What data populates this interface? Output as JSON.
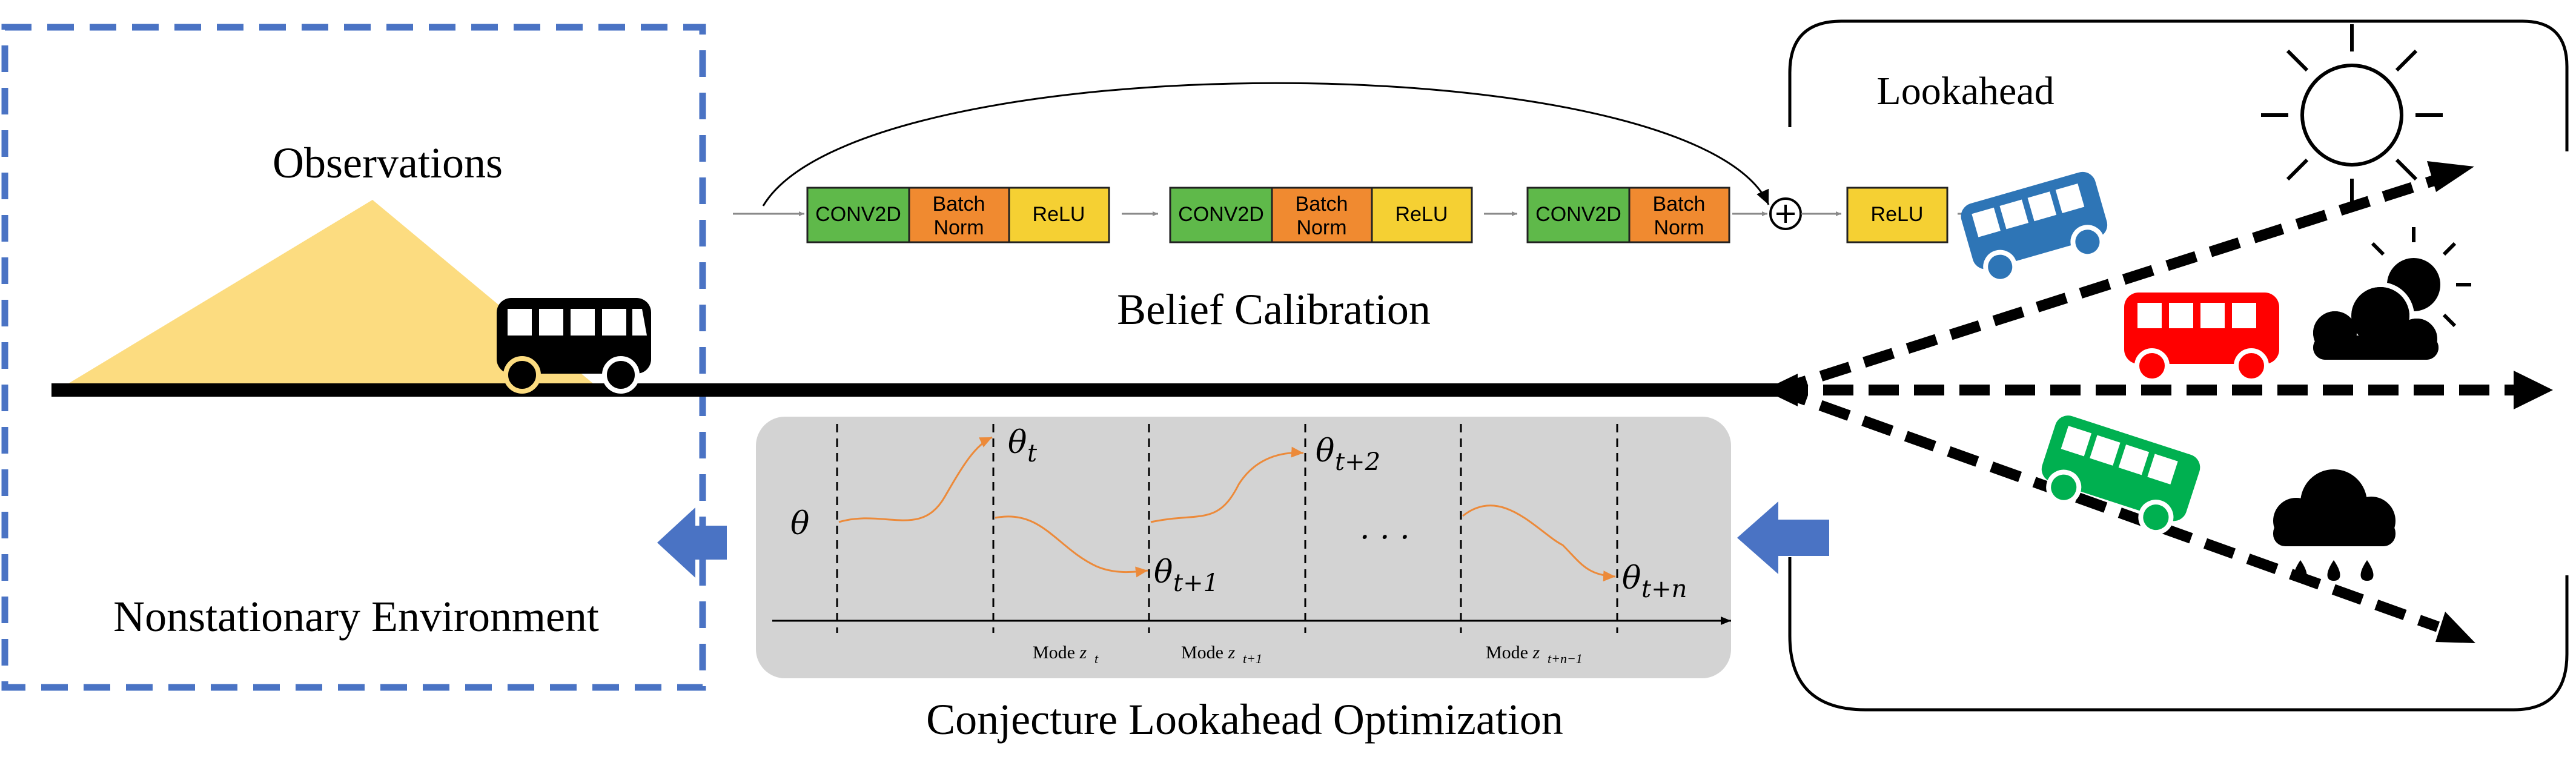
{
  "labels": {
    "observations": "Observations",
    "environment": "Nonstationary Environment",
    "belief_calibration": "Belief Calibration",
    "conjecture": "Conjecture Lookahead Optimization",
    "lookahead": "Lookahead"
  },
  "network": {
    "blocks": [
      {
        "conv": "CONV2D",
        "bn_line1": "Batch",
        "bn_line2": "Norm",
        "act": "ReLU"
      },
      {
        "conv": "CONV2D",
        "bn_line1": "Batch",
        "bn_line2": "Norm",
        "act": "ReLU"
      },
      {
        "conv": "CONV2D",
        "bn_line1": "Batch",
        "bn_line2": "Norm"
      }
    ],
    "final_act": "ReLU",
    "sum_symbol": "+"
  },
  "optimization": {
    "theta": "θ",
    "theta_t": "θ",
    "theta_t_sub": "t",
    "theta_t1": "θ",
    "theta_t1_sub": "t+1",
    "theta_t2": "θ",
    "theta_t2_sub": "t+2",
    "theta_tn": "θ",
    "theta_tn_sub": "t+n",
    "ellipsis": "· · ·",
    "modes": [
      {
        "text": "Mode ",
        "var": "z",
        "sub": "t"
      },
      {
        "text": "Mode ",
        "var": "z",
        "sub": "t+1"
      },
      {
        "text": "Mode ",
        "var": "z",
        "sub": "t+n−1"
      }
    ]
  },
  "colors": {
    "conv": "#5fb94a",
    "batchnorm": "#f08a30",
    "relu": "#f5d033",
    "env_border": "#4a73c4",
    "blue_arrow": "#4a73c4",
    "observation_fill": "#fcdc80",
    "opt_panel": "#d3d3d3",
    "curve": "#ec8a3a",
    "bus_blue": "#2e75b6",
    "bus_red": "#ff0000",
    "bus_green": "#00b050"
  },
  "icons": [
    "bus-icon",
    "sun-icon",
    "partly-cloudy-icon",
    "rain-cloud-icon"
  ]
}
